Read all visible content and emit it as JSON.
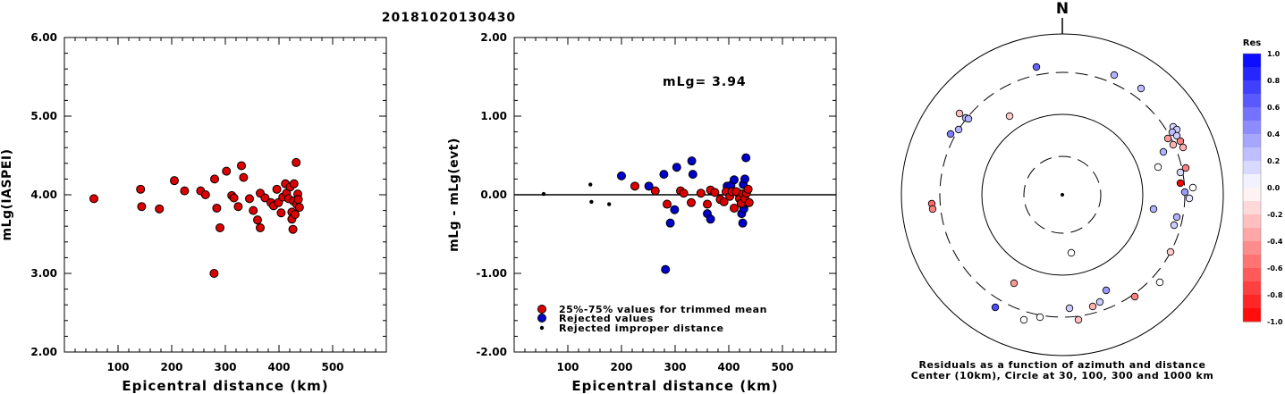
{
  "title": "20181020130430",
  "colors": {
    "red": "#dd0000",
    "blue": "#0000cc",
    "black": "#000000"
  },
  "chart_data": [
    {
      "type": "scatter",
      "xlabel": "Epicentral distance (km)",
      "ylabel": "mLg(IASPEI)",
      "xlim": [
        0,
        600
      ],
      "ylim": [
        2.0,
        6.0
      ],
      "xticks": [
        100,
        200,
        300,
        400,
        500
      ],
      "yticks": [
        2.0,
        3.0,
        4.0,
        5.0,
        6.0
      ],
      "ytick_labels": [
        "2.00",
        "3.00",
        "4.00",
        "5.00",
        "6.00"
      ],
      "points": [
        [
          55,
          3.95
        ],
        [
          142,
          4.07
        ],
        [
          144,
          3.85
        ],
        [
          177,
          3.82
        ],
        [
          205,
          4.18
        ],
        [
          224,
          4.05
        ],
        [
          254,
          4.05
        ],
        [
          263,
          4.0
        ],
        [
          280,
          4.2
        ],
        [
          284,
          3.83
        ],
        [
          290,
          3.58
        ],
        [
          279,
          3.0
        ],
        [
          302,
          4.3
        ],
        [
          312,
          3.99
        ],
        [
          316,
          3.96
        ],
        [
          324,
          3.85
        ],
        [
          330,
          4.37
        ],
        [
          334,
          4.22
        ],
        [
          345,
          3.95
        ],
        [
          352,
          3.8
        ],
        [
          360,
          3.68
        ],
        [
          365,
          4.02
        ],
        [
          365,
          3.58
        ],
        [
          374,
          3.96
        ],
        [
          385,
          3.9
        ],
        [
          390,
          3.86
        ],
        [
          396,
          4.07
        ],
        [
          399,
          3.9
        ],
        [
          404,
          3.77
        ],
        [
          407,
          3.97
        ],
        [
          412,
          4.14
        ],
        [
          414,
          4.02
        ],
        [
          418,
          3.95
        ],
        [
          421,
          4.1
        ],
        [
          424,
          3.78
        ],
        [
          424,
          3.69
        ],
        [
          426,
          3.56
        ],
        [
          427,
          3.92
        ],
        [
          428,
          4.14
        ],
        [
          430,
          3.75
        ],
        [
          432,
          4.41
        ],
        [
          433,
          3.88
        ],
        [
          435,
          4.01
        ],
        [
          436,
          3.94
        ],
        [
          438,
          3.84
        ]
      ]
    },
    {
      "type": "scatter",
      "xlabel": "Epicentral distance (km)",
      "ylabel": "mLg - mLg(evt)",
      "annotation": "mLg= 3.94",
      "reference_line": 0,
      "xlim": [
        0,
        600
      ],
      "ylim": [
        -2.0,
        2.0
      ],
      "xticks": [
        100,
        200,
        300,
        400,
        500
      ],
      "yticks": [
        -2.0,
        -1.0,
        0.0,
        1.0,
        2.0
      ],
      "ytick_labels": [
        "-2.00",
        "-1.00",
        "0.00",
        "1.00",
        "2.00"
      ],
      "legend": [
        {
          "label": "25%-75% values for trimmed mean",
          "color": "#dd0000"
        },
        {
          "label": "Rejected values",
          "color": "#0000cc"
        },
        {
          "label": "Rejected improper distance",
          "color": "#000000"
        }
      ],
      "trimmed": [
        [
          225,
          0.11
        ],
        [
          263,
          0.05
        ],
        [
          285,
          -0.12
        ],
        [
          310,
          0.05
        ],
        [
          316,
          0.02
        ],
        [
          330,
          -0.1
        ],
        [
          348,
          0.02
        ],
        [
          360,
          -0.12
        ],
        [
          366,
          0.06
        ],
        [
          374,
          0.03
        ],
        [
          384,
          -0.06
        ],
        [
          391,
          -0.09
        ],
        [
          395,
          0.04
        ],
        [
          402,
          -0.02
        ],
        [
          406,
          0.04
        ],
        [
          410,
          -0.17
        ],
        [
          414,
          0.04
        ],
        [
          420,
          -0.05
        ],
        [
          423,
          -0.11
        ],
        [
          426,
          0.01
        ],
        [
          430,
          -0.05
        ],
        [
          433,
          0.02
        ],
        [
          436,
          0.07
        ],
        [
          438,
          -0.1
        ]
      ],
      "rejected": [
        [
          200,
          0.24
        ],
        [
          251,
          0.11
        ],
        [
          279,
          0.26
        ],
        [
          282,
          -0.95
        ],
        [
          291,
          -0.36
        ],
        [
          299,
          -0.19
        ],
        [
          303,
          0.35
        ],
        [
          331,
          0.43
        ],
        [
          333,
          0.26
        ],
        [
          360,
          -0.24
        ],
        [
          366,
          -0.31
        ],
        [
          397,
          0.11
        ],
        [
          404,
          0.12
        ],
        [
          410,
          0.19
        ],
        [
          418,
          0.02
        ],
        [
          424,
          -0.24
        ],
        [
          426,
          -0.36
        ],
        [
          427,
          0.13
        ],
        [
          428,
          -0.18
        ],
        [
          430,
          0.2
        ],
        [
          432,
          -0.11
        ],
        [
          432,
          0.47
        ]
      ],
      "improper": [
        [
          55,
          0.01
        ],
        [
          142,
          0.13
        ],
        [
          144,
          -0.09
        ],
        [
          177,
          -0.12
        ]
      ]
    },
    {
      "type": "polar",
      "north_label": "N",
      "caption_line1": "Residuals as a function of azimuth and distance",
      "caption_line2": "Center (10km), Circle at 30, 100, 300 and 1000 km",
      "colorbar_title": "Res",
      "colorbar_ticks": [
        1.0,
        0.8,
        0.6,
        0.4,
        0.2,
        0.0,
        -0.2,
        -0.4,
        -0.6,
        -0.8,
        -1.0
      ],
      "colorbar_tick_labels": [
        "1.0",
        "0.8",
        "0.6",
        "0.4",
        "0.2",
        "0.0",
        "-0.2",
        "-0.4",
        "-0.6",
        "-0.8",
        "-1.0"
      ],
      "points": [
        [
          1159,
          75,
          0.6
        ],
        [
          1246,
          84,
          0.3
        ],
        [
          1276,
          99,
          0.25
        ],
        [
          1073,
          127,
          -0.25
        ],
        [
          1080,
          132,
          0.3
        ],
        [
          1083,
          133,
          0.3
        ],
        [
          1129,
          130,
          -0.2
        ],
        [
          1063,
          150,
          0.5
        ],
        [
          1072,
          145,
          0.3
        ],
        [
          1312,
          142,
          0.15
        ],
        [
          1316,
          145,
          0.2
        ],
        [
          1311,
          148,
          0.25
        ],
        [
          1316,
          152,
          0.2
        ],
        [
          1306,
          155,
          -0.4
        ],
        [
          1320,
          158,
          -0.5
        ],
        [
          1312,
          162,
          -0.3
        ],
        [
          1301,
          170,
          0.3
        ],
        [
          1323,
          165,
          -0.3
        ],
        [
          1295,
          187,
          0.0
        ],
        [
          1326,
          188,
          -0.5
        ],
        [
          1320,
          193,
          0.15
        ],
        [
          1320,
          205,
          -1.0
        ],
        [
          1334,
          210,
          0.0
        ],
        [
          1325,
          215,
          0.4
        ],
        [
          1330,
          222,
          0.1
        ],
        [
          1042,
          228,
          -0.6
        ],
        [
          1043,
          234,
          -0.5
        ],
        [
          1290,
          234,
          0.3
        ],
        [
          1316,
          243,
          0.3
        ],
        [
          1313,
          252,
          0.2
        ],
        [
          1198,
          283,
          0.0
        ],
        [
          1309,
          282,
          -0.2
        ],
        [
          1134,
          317,
          -0.4
        ],
        [
          1297,
          316,
          0.0
        ],
        [
          1237,
          325,
          0.4
        ],
        [
          1269,
          332,
          -0.5
        ],
        [
          1113,
          344,
          0.7
        ],
        [
          1196,
          345,
          0.2
        ],
        [
          1230,
          338,
          0.2
        ],
        [
          1222,
          343,
          -0.3
        ],
        [
          1145,
          358,
          0.0
        ],
        [
          1163,
          355,
          0.0
        ],
        [
          1206,
          358,
          -0.25
        ]
      ]
    }
  ]
}
